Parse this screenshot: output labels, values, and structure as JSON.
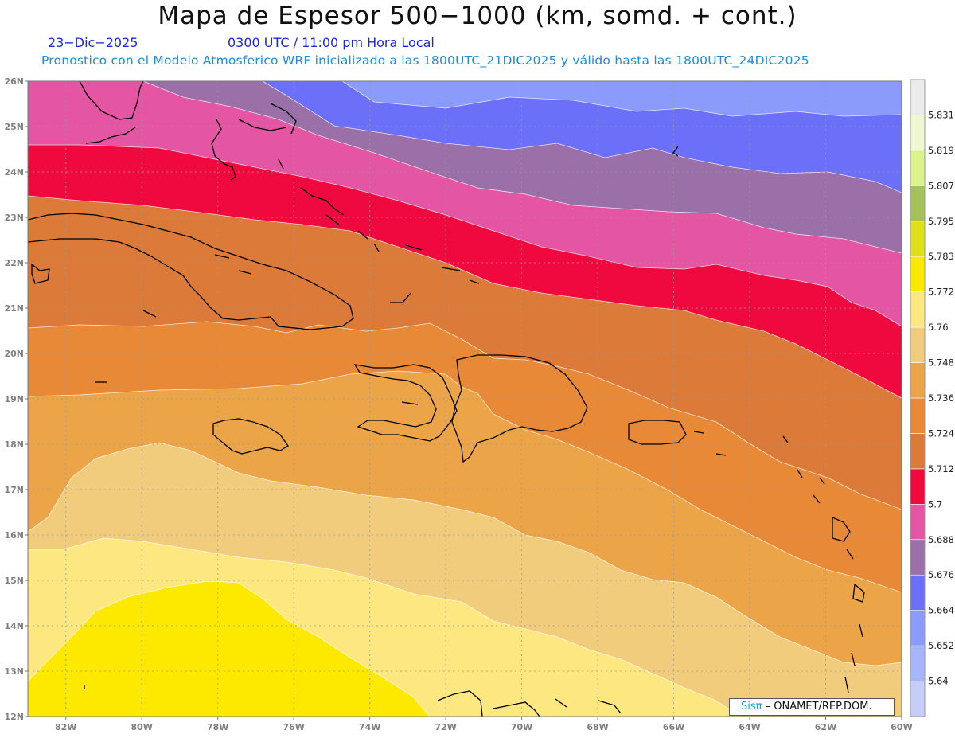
{
  "header": {
    "title": "Mapa de Espesor 500−1000 (km, somd. + cont.)",
    "date": "23−Dic−2025",
    "time": "0300 UTC / 11:00 pm Hora Local",
    "subtitle": "Pronostico con el Modelo Atmosferico WRF inicializado a las 1800UTC_21DIC2025 y válido hasta las  1800UTC_24DIC2025"
  },
  "map": {
    "lon_range": [
      -83,
      -60
    ],
    "lat_range": [
      12,
      26
    ],
    "lon_ticks": [
      "82W",
      "80W",
      "78W",
      "76W",
      "74W",
      "72W",
      "70W",
      "68W",
      "66W",
      "64W",
      "62W",
      "60W"
    ],
    "lat_ticks": [
      "26N",
      "25N",
      "24N",
      "23N",
      "22N",
      "21N",
      "20N",
      "19N",
      "18N",
      "17N",
      "16N",
      "15N",
      "14N",
      "13N",
      "12N"
    ],
    "grid": "dotted"
  },
  "colorbar": {
    "levels": [
      "5.64",
      "5.652",
      "5.664",
      "5.676",
      "5.688",
      "5.7",
      "5.712",
      "5.724",
      "5.736",
      "5.748",
      "5.76",
      "5.772",
      "5.783",
      "5.795",
      "5.807",
      "5.819",
      "5.831"
    ],
    "colors": [
      "#c6cdfb",
      "#a7b5fd",
      "#8a9bfc",
      "#6c6ff7",
      "#9b6fa8",
      "#e455a4",
      "#f0093f",
      "#db7a39",
      "#e78936",
      "#eba447",
      "#f1cc7d",
      "#fde780",
      "#fde800",
      "#e0e01a",
      "#a4c15a",
      "#dbf38b",
      "#eef6d2",
      "#ebebeb"
    ]
  },
  "regions": {
    "c_5_664": "#6c6ff7",
    "c_5_676": "#9b6fa8",
    "c_5_688": "#e455a4",
    "c_5_700": "#f0093f",
    "c_5_712": "#db7a39",
    "c_5_724": "#e78936",
    "c_5_736": "#eba447",
    "c_5_748": "#f1cc7d",
    "c_5_760": "#fde780",
    "c_5_772": "#fde800",
    "c_5_652": "#8a9bfc"
  },
  "credit": {
    "sis": "Sisπ",
    "text": " – ONAMET/REP.DOM."
  }
}
